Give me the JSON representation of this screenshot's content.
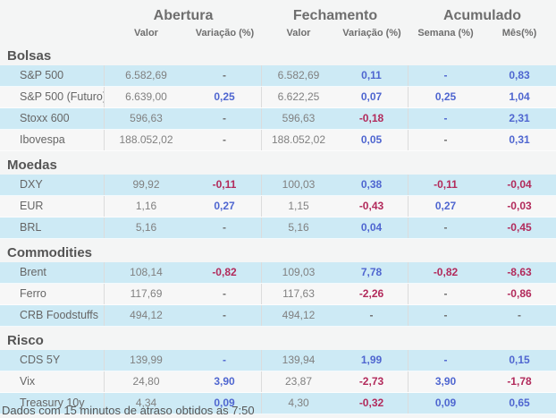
{
  "header": {
    "groups": [
      {
        "label": "Abertura"
      },
      {
        "label": "Fechamento"
      },
      {
        "label": "Acumulado"
      }
    ],
    "columns": [
      "Valor",
      "Variação (%)",
      "Valor",
      "Variação (%)",
      "Semana (%)",
      "Mês(%)"
    ]
  },
  "colors": {
    "positive_blue": "#4f66d0",
    "negative_red": "#b22a5b",
    "row_highlight_blue": "#cdeaf5",
    "row_alt": "#f7f7f7",
    "background": "#f4f5f5"
  },
  "sections": [
    {
      "title": "Bolsas",
      "rows": [
        {
          "label": "S&P 500",
          "cells": [
            {
              "t": "6.582,69",
              "c": "p"
            },
            {
              "t": "-",
              "c": "g"
            },
            {
              "t": "6.582,69",
              "c": "p"
            },
            {
              "t": "0,11",
              "c": "b"
            },
            {
              "t": "-",
              "c": "b"
            },
            {
              "t": "0,83",
              "c": "b"
            }
          ]
        },
        {
          "label": "S&P 500 (Futuro)",
          "cells": [
            {
              "t": "6.639,00",
              "c": "p"
            },
            {
              "t": "0,25",
              "c": "b"
            },
            {
              "t": "6.622,25",
              "c": "p"
            },
            {
              "t": "0,07",
              "c": "b"
            },
            {
              "t": "0,25",
              "c": "b"
            },
            {
              "t": "1,04",
              "c": "b"
            }
          ]
        },
        {
          "label": "Stoxx 600",
          "cells": [
            {
              "t": "596,63",
              "c": "p"
            },
            {
              "t": "-",
              "c": "g"
            },
            {
              "t": "596,63",
              "c": "p"
            },
            {
              "t": "-0,18",
              "c": "r"
            },
            {
              "t": "-",
              "c": "b"
            },
            {
              "t": "2,31",
              "c": "b"
            }
          ]
        },
        {
          "label": "Ibovespa",
          "cells": [
            {
              "t": "188.052,02",
              "c": "p"
            },
            {
              "t": "-",
              "c": "g"
            },
            {
              "t": "188.052,02",
              "c": "p"
            },
            {
              "t": "0,05",
              "c": "b"
            },
            {
              "t": "-",
              "c": "g"
            },
            {
              "t": "0,31",
              "c": "b"
            }
          ]
        }
      ]
    },
    {
      "title": "Moedas",
      "rows": [
        {
          "label": "DXY",
          "cells": [
            {
              "t": "99,92",
              "c": "p"
            },
            {
              "t": "-0,11",
              "c": "r"
            },
            {
              "t": "100,03",
              "c": "p"
            },
            {
              "t": "0,38",
              "c": "b"
            },
            {
              "t": "-0,11",
              "c": "r"
            },
            {
              "t": "-0,04",
              "c": "r"
            }
          ]
        },
        {
          "label": "EUR",
          "cells": [
            {
              "t": "1,16",
              "c": "p"
            },
            {
              "t": "0,27",
              "c": "b"
            },
            {
              "t": "1,15",
              "c": "p"
            },
            {
              "t": "-0,43",
              "c": "r"
            },
            {
              "t": "0,27",
              "c": "b"
            },
            {
              "t": "-0,03",
              "c": "r"
            }
          ]
        },
        {
          "label": "BRL",
          "cells": [
            {
              "t": "5,16",
              "c": "p"
            },
            {
              "t": "-",
              "c": "g"
            },
            {
              "t": "5,16",
              "c": "p"
            },
            {
              "t": "0,04",
              "c": "b"
            },
            {
              "t": "-",
              "c": "g"
            },
            {
              "t": "-0,45",
              "c": "r"
            }
          ]
        }
      ]
    },
    {
      "title": "Commodities",
      "rows": [
        {
          "label": "Brent",
          "cells": [
            {
              "t": "108,14",
              "c": "p"
            },
            {
              "t": "-0,82",
              "c": "r"
            },
            {
              "t": "109,03",
              "c": "p"
            },
            {
              "t": "7,78",
              "c": "b"
            },
            {
              "t": "-0,82",
              "c": "r"
            },
            {
              "t": "-8,63",
              "c": "r"
            }
          ]
        },
        {
          "label": "Ferro",
          "cells": [
            {
              "t": "117,69",
              "c": "p"
            },
            {
              "t": "-",
              "c": "g"
            },
            {
              "t": "117,63",
              "c": "p"
            },
            {
              "t": "-2,26",
              "c": "r"
            },
            {
              "t": "-",
              "c": "g"
            },
            {
              "t": "-0,86",
              "c": "r"
            }
          ]
        },
        {
          "label": "CRB Foodstuffs",
          "cells": [
            {
              "t": "494,12",
              "c": "p"
            },
            {
              "t": "-",
              "c": "g"
            },
            {
              "t": "494,12",
              "c": "p"
            },
            {
              "t": "-",
              "c": "g"
            },
            {
              "t": "-",
              "c": "g"
            },
            {
              "t": "-",
              "c": "g"
            }
          ]
        }
      ]
    },
    {
      "title": "Risco",
      "rows": [
        {
          "label": "CDS 5Y",
          "cells": [
            {
              "t": "139,99",
              "c": "p"
            },
            {
              "t": "-",
              "c": "b"
            },
            {
              "t": "139,94",
              "c": "p"
            },
            {
              "t": "1,99",
              "c": "b"
            },
            {
              "t": "-",
              "c": "b"
            },
            {
              "t": "0,15",
              "c": "b"
            }
          ]
        },
        {
          "label": "Vix",
          "cells": [
            {
              "t": "24,80",
              "c": "p"
            },
            {
              "t": "3,90",
              "c": "b"
            },
            {
              "t": "23,87",
              "c": "p"
            },
            {
              "t": "-2,73",
              "c": "r"
            },
            {
              "t": "3,90",
              "c": "b"
            },
            {
              "t": "-1,78",
              "c": "r"
            }
          ]
        },
        {
          "label": "Treasury 10y",
          "cells": [
            {
              "t": "4,34",
              "c": "p"
            },
            {
              "t": "0,09",
              "c": "b"
            },
            {
              "t": "4,30",
              "c": "p"
            },
            {
              "t": "-0,32",
              "c": "r"
            },
            {
              "t": "0,09",
              "c": "b"
            },
            {
              "t": "0,65",
              "c": "b"
            }
          ]
        }
      ]
    }
  ],
  "footer": {
    "text": "Dados com 15 minutos de atraso obtidos as 7:50"
  }
}
